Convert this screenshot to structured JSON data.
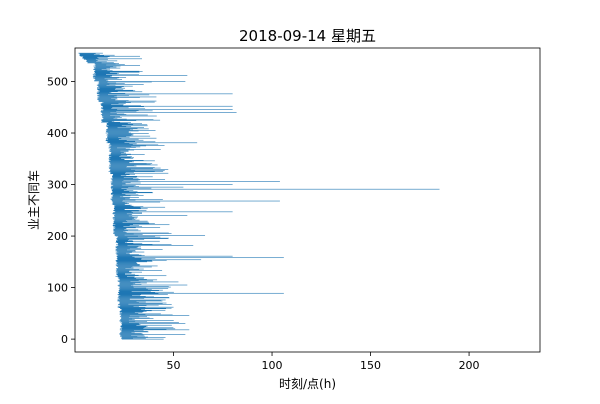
{
  "chart_data": {
    "type": "bar",
    "orientation": "horizontal",
    "title": "2018-09-14 星期五",
    "xlabel": "时刻/点(h)",
    "ylabel": "业主不同车",
    "xlim": [
      0,
      236
    ],
    "ylim": [
      -25,
      565
    ],
    "xticks": [
      50,
      100,
      150,
      200
    ],
    "yticks": [
      0,
      100,
      200,
      300,
      400,
      500
    ],
    "grid": false,
    "legend": "none",
    "bar_color": "#1f77b4",
    "num_bars": 556,
    "spine_color": "#000000"
  }
}
